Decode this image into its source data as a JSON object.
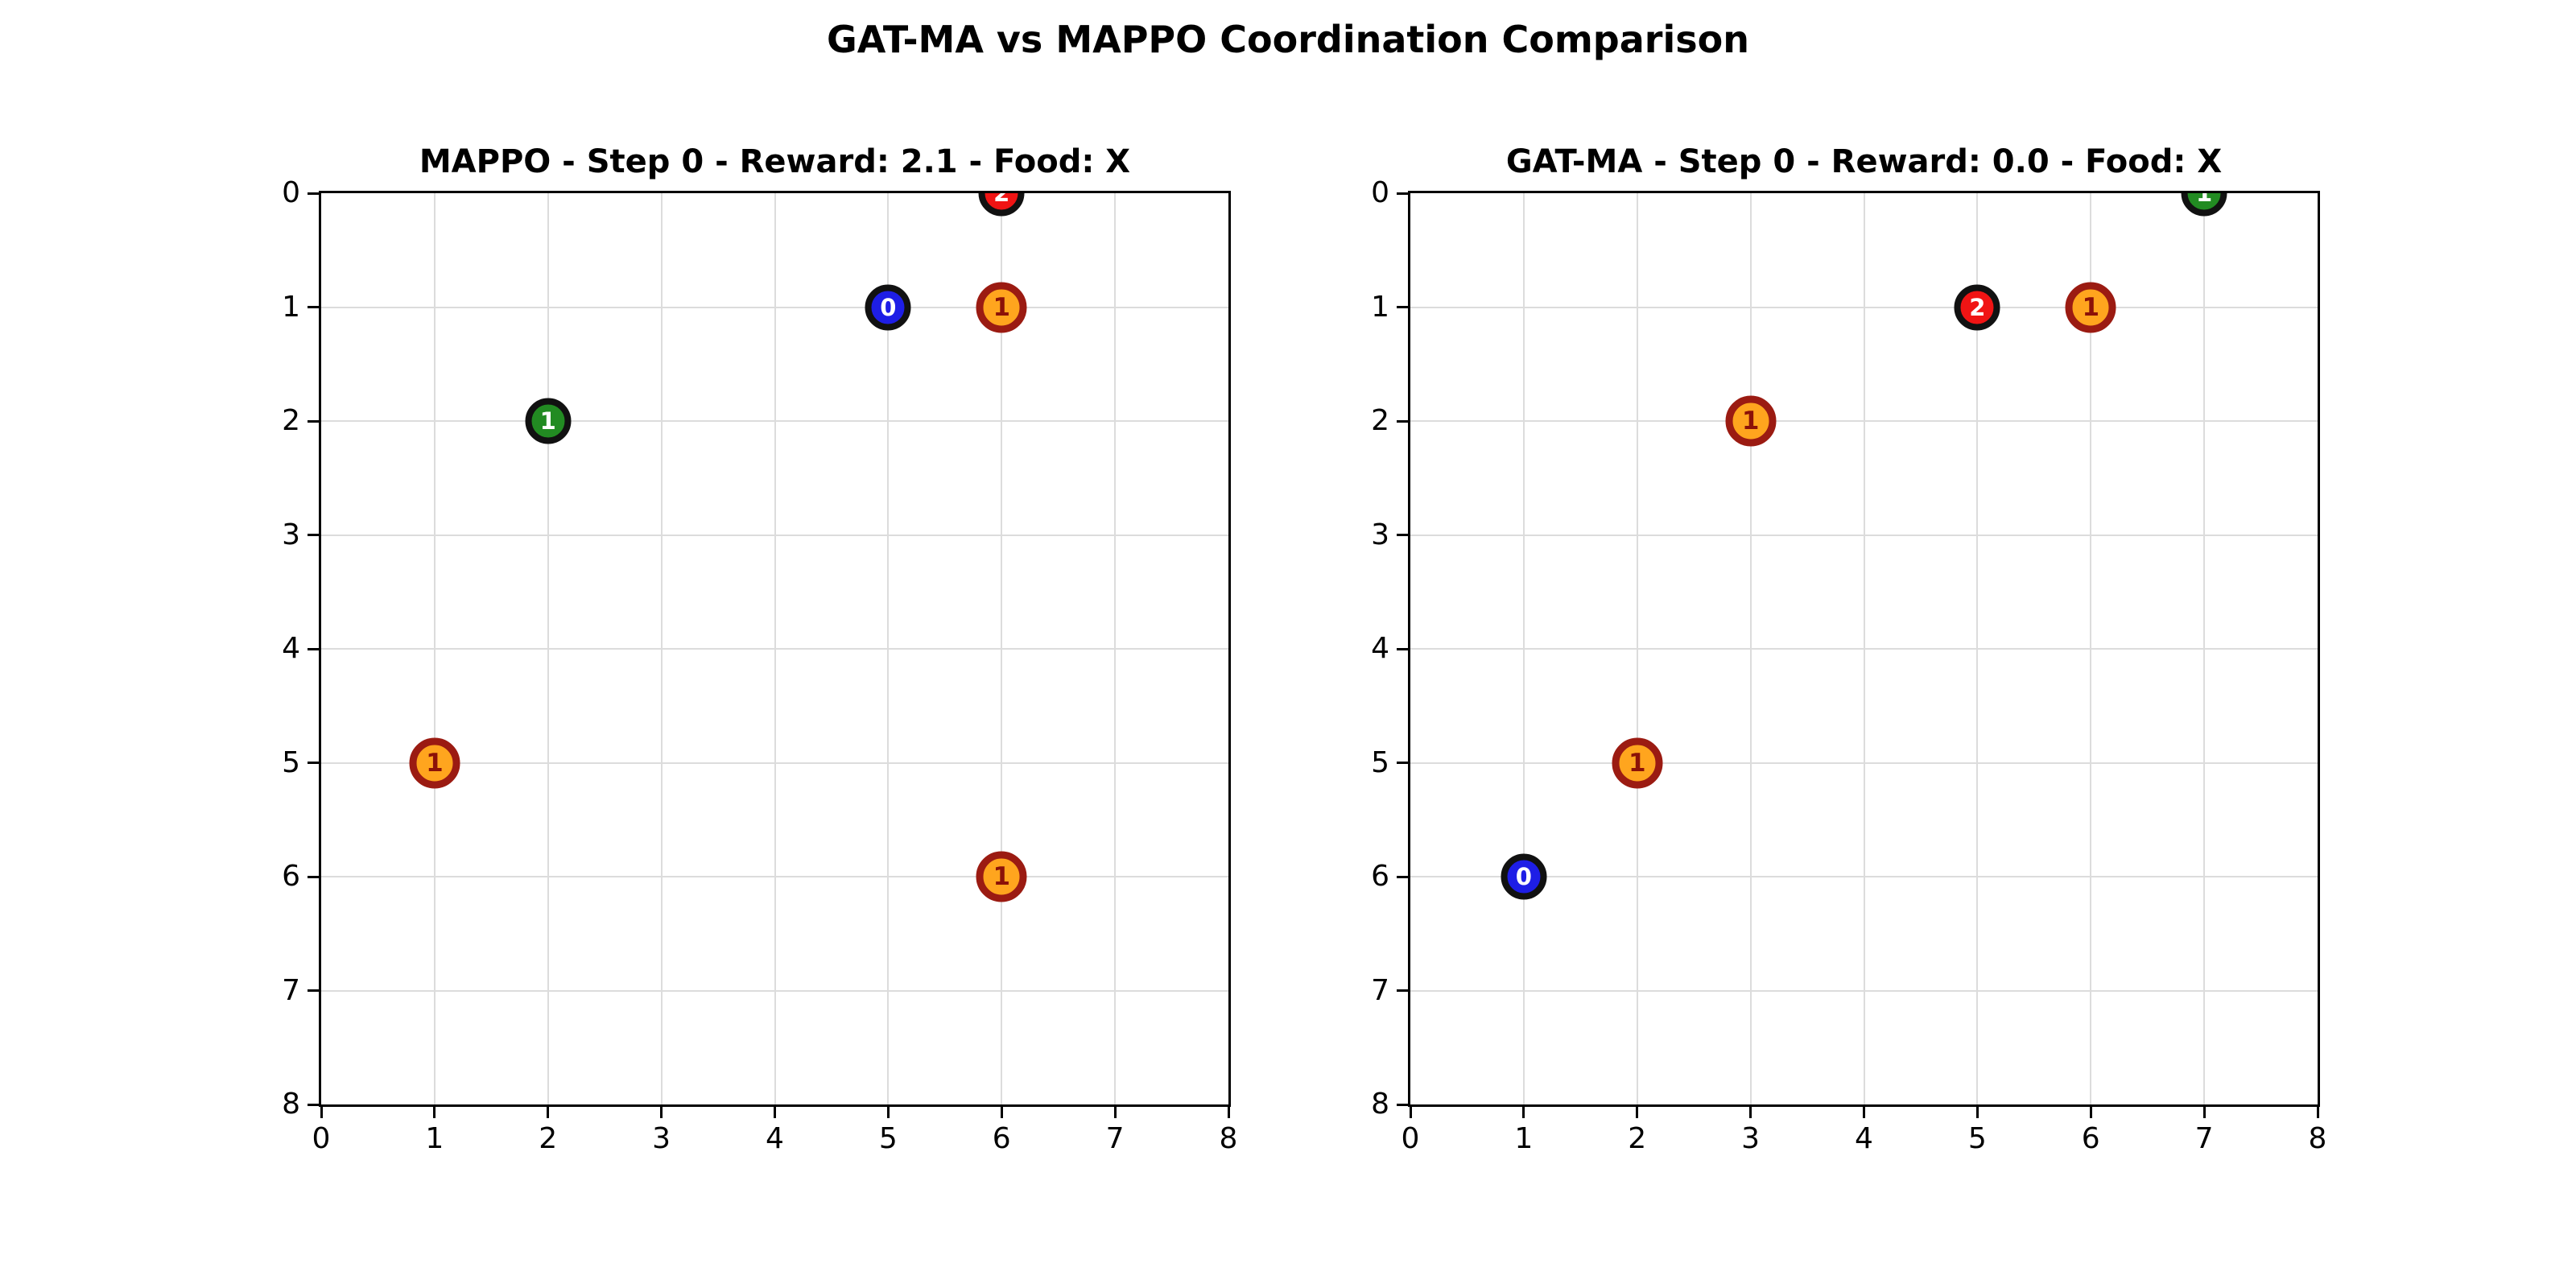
{
  "figure": {
    "title": "GAT-MA vs MAPPO Coordination Comparison"
  },
  "colors": {
    "agent_blue": "#1e1ee6",
    "agent_green": "#228b22",
    "agent_red": "#f01414",
    "agent_edge": "#111111",
    "agent_label": "#ffffff",
    "food_fill": "#ffa51e",
    "food_edge": "#9b1b12",
    "food_label": "#8b1108",
    "grid": "#dcdcdc",
    "spine": "#000000",
    "background": "#ffffff"
  },
  "chart_data": [
    {
      "type": "scatter",
      "title": "MAPPO - Step 0 - Reward: 2.1 - Food: X",
      "panel": "MAPPO",
      "step": 0,
      "reward": "2.1",
      "food_status": "X",
      "xlim": [
        0,
        8
      ],
      "ylim": [
        0,
        8
      ],
      "y_axis_inverted": true,
      "grid": true,
      "xticks": [
        0,
        1,
        2,
        3,
        4,
        5,
        6,
        7,
        8
      ],
      "yticks": [
        0,
        1,
        2,
        3,
        4,
        5,
        6,
        7,
        8
      ],
      "agents": [
        {
          "id": "0",
          "x": 5,
          "y": 1,
          "color_key": "agent_blue"
        },
        {
          "id": "1",
          "x": 2,
          "y": 2,
          "color_key": "agent_green"
        },
        {
          "id": "2",
          "x": 6,
          "y": 0,
          "color_key": "agent_red"
        }
      ],
      "food": [
        {
          "level": "1",
          "x": 6,
          "y": 1
        },
        {
          "level": "1",
          "x": 1,
          "y": 5
        },
        {
          "level": "1",
          "x": 6,
          "y": 6
        }
      ]
    },
    {
      "type": "scatter",
      "title": "GAT-MA - Step 0 - Reward: 0.0 - Food: X",
      "panel": "GAT-MA",
      "step": 0,
      "reward": "0.0",
      "food_status": "X",
      "xlim": [
        0,
        8
      ],
      "ylim": [
        0,
        8
      ],
      "y_axis_inverted": true,
      "grid": true,
      "xticks": [
        0,
        1,
        2,
        3,
        4,
        5,
        6,
        7,
        8
      ],
      "yticks": [
        0,
        1,
        2,
        3,
        4,
        5,
        6,
        7,
        8
      ],
      "agents": [
        {
          "id": "0",
          "x": 1,
          "y": 6,
          "color_key": "agent_blue"
        },
        {
          "id": "1",
          "x": 7,
          "y": 0,
          "color_key": "agent_green"
        },
        {
          "id": "2",
          "x": 5,
          "y": 1,
          "color_key": "agent_red"
        }
      ],
      "food": [
        {
          "level": "1",
          "x": 6,
          "y": 1
        },
        {
          "level": "1",
          "x": 3,
          "y": 2
        },
        {
          "level": "1",
          "x": 2,
          "y": 5
        }
      ]
    }
  ]
}
